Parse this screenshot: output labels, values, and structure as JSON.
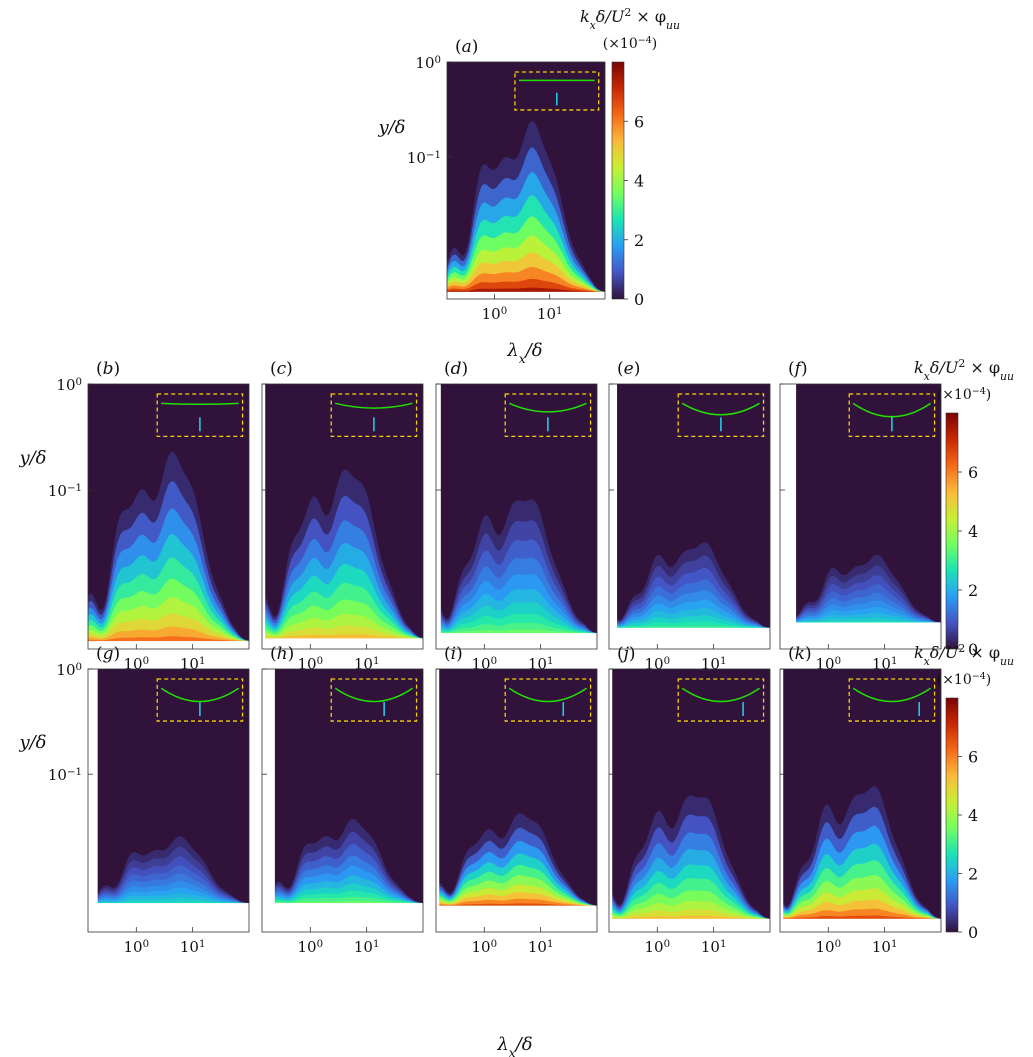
{
  "figure": {
    "colorbar": {
      "label": "k",
      "label_sub": "x",
      "label_rest": "δ/U",
      "label_sup": "2",
      "label_tail": " × φ",
      "label_tail_sub": "uu",
      "scale_open": "(×10",
      "scale_sup": "−4",
      "scale_close": ")",
      "ticks": [
        "0",
        "2",
        "4",
        "6"
      ],
      "range": [
        0,
        8
      ],
      "colormap": [
        "#30123b",
        "#4454c4",
        "#2a9df5",
        "#1ae4b6",
        "#72fe5e",
        "#c8ef34",
        "#faba39",
        "#f56918",
        "#c92903",
        "#7a0403"
      ]
    },
    "axes": {
      "ylabel": "y/δ",
      "xlabel": "λ",
      "xlabel_sub": "x",
      "xlabel_rest": "/δ",
      "x_ticks": [
        {
          "base": "10",
          "exp": "0"
        },
        {
          "base": "10",
          "exp": "1"
        }
      ],
      "y_ticks": [
        {
          "base": "10",
          "exp": "0"
        },
        {
          "base": "10",
          "exp": "−1"
        }
      ]
    },
    "colors": {
      "background": "#30123b",
      "inset_box": "#f5d10a",
      "inset_curve": "#22e000",
      "inset_marker": "#23c8e8"
    }
  },
  "chart_data": [
    {
      "label": "(a)",
      "type": "heatmap",
      "xscale": "log",
      "yscale": "log",
      "ylim": [
        0.02,
        1
      ],
      "peak": 8.0,
      "extent": 0.78,
      "inset_curvature": 0.0,
      "inset_marker": 0.5
    },
    {
      "label": "(b)",
      "type": "heatmap",
      "xscale": "log",
      "yscale": "log",
      "ylim": [
        0.02,
        1
      ],
      "peak": 6.5,
      "extent": 0.78,
      "inset_curvature": 0.05,
      "inset_marker": 0.5
    },
    {
      "label": "(c)",
      "type": "heatmap",
      "xscale": "log",
      "yscale": "log",
      "ylim": [
        0.02,
        1
      ],
      "peak": 5.5,
      "extent": 0.72,
      "inset_curvature": 0.25,
      "inset_marker": 0.5
    },
    {
      "label": "(d)",
      "type": "heatmap",
      "xscale": "log",
      "yscale": "log",
      "ylim": [
        0.02,
        1
      ],
      "peak": 3.5,
      "extent": 0.6,
      "inset_curvature": 0.45,
      "inset_marker": 0.5
    },
    {
      "label": "(e)",
      "type": "heatmap",
      "xscale": "log",
      "yscale": "log",
      "ylim": [
        0.02,
        1
      ],
      "peak": 3.0,
      "extent": 0.38,
      "inset_curvature": 0.6,
      "inset_marker": 0.5
    },
    {
      "label": "(f)",
      "type": "heatmap",
      "xscale": "log",
      "yscale": "log",
      "ylim": [
        0.02,
        1
      ],
      "peak": 2.5,
      "extent": 0.3,
      "inset_curvature": 0.7,
      "inset_marker": 0.5
    },
    {
      "label": "(g)",
      "type": "heatmap",
      "xscale": "log",
      "yscale": "log",
      "ylim": [
        0.02,
        1
      ],
      "peak": 2.5,
      "extent": 0.3,
      "inset_curvature": 0.7,
      "inset_marker": 0.5
    },
    {
      "label": "(h)",
      "type": "heatmap",
      "xscale": "log",
      "yscale": "log",
      "ylim": [
        0.02,
        1
      ],
      "peak": 3.5,
      "extent": 0.38,
      "inset_curvature": 0.7,
      "inset_marker": 0.62
    },
    {
      "label": "(i)",
      "type": "heatmap",
      "xscale": "log",
      "yscale": "log",
      "ylim": [
        0.02,
        1
      ],
      "peak": 7.0,
      "extent": 0.42,
      "inset_curvature": 0.7,
      "inset_marker": 0.68
    },
    {
      "label": "(j)",
      "type": "heatmap",
      "xscale": "log",
      "yscale": "log",
      "ylim": [
        0.02,
        1
      ],
      "peak": 5.5,
      "extent": 0.55,
      "inset_curvature": 0.7,
      "inset_marker": 0.76
    },
    {
      "label": "(k)",
      "type": "heatmap",
      "xscale": "log",
      "yscale": "log",
      "ylim": [
        0.02,
        1
      ],
      "peak": 7.0,
      "extent": 0.58,
      "inset_curvature": 0.7,
      "inset_marker": 0.82
    }
  ]
}
